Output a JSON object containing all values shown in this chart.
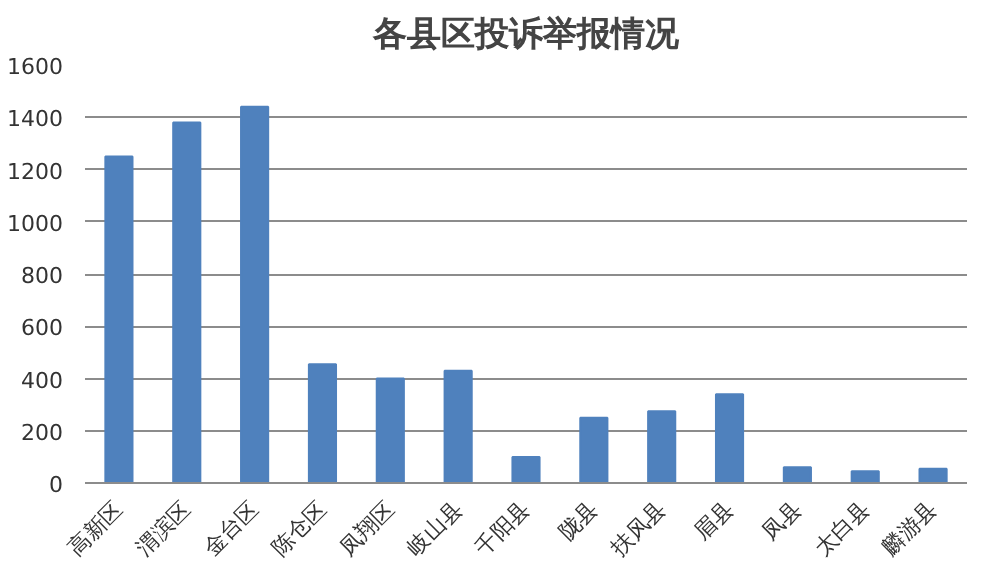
{
  "chart_data": {
    "type": "bar",
    "title": "各县区投诉举报情况",
    "categories": [
      "高新区",
      "渭滨区",
      "金台区",
      "陈仓区",
      "凤翔区",
      "岐山县",
      "千阳县",
      "陇县",
      "扶风县",
      "眉县",
      "凤县",
      "太白县",
      "麟游县"
    ],
    "values": [
      1250,
      1380,
      1440,
      455,
      400,
      430,
      100,
      250,
      275,
      340,
      60,
      45,
      55
    ],
    "color": "#4f81bd",
    "ylim": [
      0,
      1600
    ],
    "yticks": [
      0,
      200,
      400,
      600,
      800,
      1000,
      1200,
      1400,
      1600
    ],
    "grid": "y"
  }
}
